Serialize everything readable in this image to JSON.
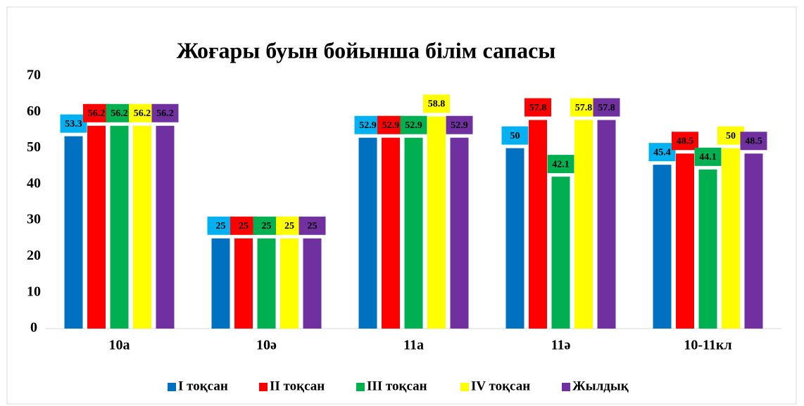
{
  "chart_data": {
    "type": "bar",
    "title": "Жоғары буын бойынша білім  сапасы",
    "categories": [
      "10а",
      "10ә",
      "11а",
      "11ә",
      "10-11кл"
    ],
    "series": [
      {
        "name": "I тоқсан",
        "color": "#0070c0",
        "values": [
          53.3,
          25,
          52.9,
          50,
          45.4
        ]
      },
      {
        "name": "II тоқсан",
        "color": "#ff0000",
        "values": [
          56.2,
          25,
          52.9,
          57.8,
          48.5
        ]
      },
      {
        "name": "III тоқсан",
        "color": "#00b050",
        "values": [
          56.2,
          25,
          52.9,
          42.1,
          44.1
        ]
      },
      {
        "name": "IV тоқсан",
        "color": "#ffff00",
        "values": [
          56.2,
          25,
          58.8,
          57.8,
          50
        ]
      },
      {
        "name": "Жылдық",
        "color": "#7030a0",
        "values": [
          56.2,
          25,
          52.9,
          57.8,
          48.5
        ]
      }
    ],
    "label_colors": [
      "#00b0f0",
      "#ff0000",
      "#00b050",
      "#ffff00",
      "#7030a0"
    ],
    "ylim": [
      0,
      70
    ],
    "yticks": [
      0,
      10,
      20,
      30,
      40,
      50,
      60,
      70
    ],
    "grid": false,
    "legend": "bottom"
  }
}
